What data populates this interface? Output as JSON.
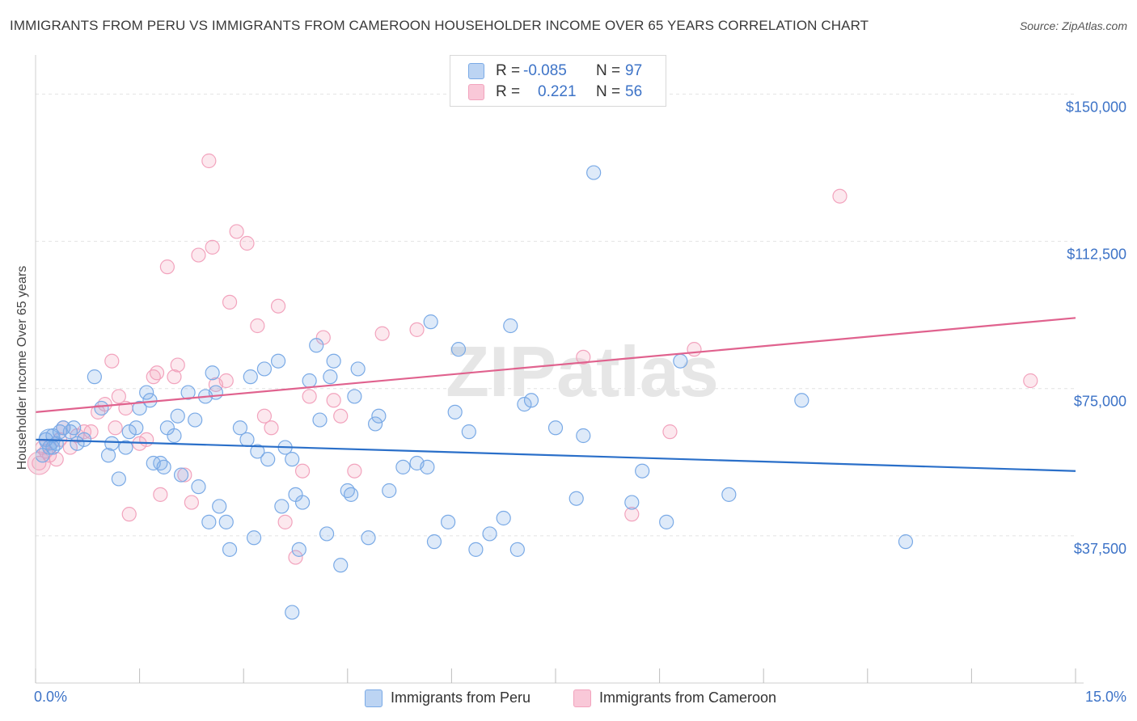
{
  "title": "IMMIGRANTS FROM PERU VS IMMIGRANTS FROM CAMEROON HOUSEHOLDER INCOME OVER 65 YEARS CORRELATION CHART",
  "source": "Source: ZipAtlas.com",
  "watermark": "ZIPatlas",
  "legend": {
    "peru": {
      "r_label": "R =",
      "r_value": "-0.085",
      "n_label": "N =",
      "n_value": "97"
    },
    "cameroon": {
      "r_label": "R =",
      "r_value": "0.221",
      "n_label": "N =",
      "n_value": "56"
    }
  },
  "bottom_legend": {
    "peru": "Immigrants from Peru",
    "cameroon": "Immigrants from Cameroon"
  },
  "colors": {
    "peru": "#7aaae6",
    "peru_line": "#2a6fc9",
    "cameroon": "#f2a3bd",
    "cameroon_line": "#e0628e",
    "axis_text": "#3d73c7"
  },
  "chart_data": {
    "type": "scatter",
    "xlabel": "",
    "ylabel": "Householder Income Over 65 years",
    "xlim": [
      0,
      15
    ],
    "ylim": [
      0,
      157500
    ],
    "x_tick_labels": [
      "0.0%",
      "15.0%"
    ],
    "y_ticks": [
      37500,
      75000,
      112500,
      150000
    ],
    "y_tick_labels": [
      "$37,500",
      "$75,000",
      "$112,500",
      "$150,000"
    ],
    "grid": true,
    "series": [
      {
        "name": "Immigrants from Peru",
        "trend": [
          [
            0.0,
            62000
          ],
          [
            15.0,
            54000
          ]
        ],
        "points": [
          [
            0.1,
            58000
          ],
          [
            0.15,
            62000
          ],
          [
            0.2,
            60000
          ],
          [
            0.25,
            63000
          ],
          [
            0.3,
            61000
          ],
          [
            0.35,
            64000
          ],
          [
            0.4,
            65000
          ],
          [
            0.5,
            64000
          ],
          [
            0.55,
            65000
          ],
          [
            0.6,
            61000
          ],
          [
            0.7,
            62000
          ],
          [
            0.85,
            78000
          ],
          [
            0.95,
            70000
          ],
          [
            1.05,
            58000
          ],
          [
            1.1,
            61000
          ],
          [
            1.2,
            52000
          ],
          [
            1.3,
            60000
          ],
          [
            1.35,
            64000
          ],
          [
            1.45,
            65000
          ],
          [
            1.5,
            70000
          ],
          [
            1.6,
            74000
          ],
          [
            1.65,
            72000
          ],
          [
            1.7,
            56000
          ],
          [
            1.8,
            56000
          ],
          [
            1.85,
            55000
          ],
          [
            1.9,
            65000
          ],
          [
            2.0,
            63000
          ],
          [
            2.05,
            68000
          ],
          [
            2.1,
            53000
          ],
          [
            2.2,
            74000
          ],
          [
            2.3,
            67000
          ],
          [
            2.35,
            50000
          ],
          [
            2.45,
            73000
          ],
          [
            2.5,
            41000
          ],
          [
            2.55,
            79000
          ],
          [
            2.6,
            74000
          ],
          [
            2.65,
            45000
          ],
          [
            2.75,
            41000
          ],
          [
            2.8,
            34000
          ],
          [
            2.95,
            65000
          ],
          [
            3.05,
            62000
          ],
          [
            3.1,
            78000
          ],
          [
            3.15,
            37000
          ],
          [
            3.2,
            59000
          ],
          [
            3.3,
            80000
          ],
          [
            3.35,
            57000
          ],
          [
            3.5,
            82000
          ],
          [
            3.55,
            45000
          ],
          [
            3.6,
            60000
          ],
          [
            3.7,
            57000
          ],
          [
            3.75,
            48000
          ],
          [
            3.8,
            34000
          ],
          [
            3.85,
            46000
          ],
          [
            3.95,
            77000
          ],
          [
            4.05,
            86000
          ],
          [
            4.1,
            67000
          ],
          [
            4.2,
            38000
          ],
          [
            4.25,
            78000
          ],
          [
            4.3,
            82000
          ],
          [
            4.4,
            30000
          ],
          [
            4.5,
            49000
          ],
          [
            4.55,
            48000
          ],
          [
            4.6,
            73000
          ],
          [
            4.65,
            80000
          ],
          [
            4.8,
            37000
          ],
          [
            4.9,
            66000
          ],
          [
            4.95,
            68000
          ],
          [
            5.1,
            49000
          ],
          [
            5.3,
            55000
          ],
          [
            5.5,
            56000
          ],
          [
            5.65,
            55000
          ],
          [
            5.7,
            92000
          ],
          [
            5.75,
            36000
          ],
          [
            5.95,
            41000
          ],
          [
            6.05,
            69000
          ],
          [
            6.1,
            85000
          ],
          [
            6.25,
            64000
          ],
          [
            6.35,
            34000
          ],
          [
            6.55,
            38000
          ],
          [
            6.75,
            42000
          ],
          [
            6.85,
            91000
          ],
          [
            6.95,
            34000
          ],
          [
            7.05,
            71000
          ],
          [
            7.15,
            72000
          ],
          [
            7.5,
            65000
          ],
          [
            7.8,
            47000
          ],
          [
            7.9,
            63000
          ],
          [
            8.05,
            130000
          ],
          [
            8.6,
            46000
          ],
          [
            8.75,
            54000
          ],
          [
            9.1,
            41000
          ],
          [
            9.3,
            82000
          ],
          [
            10.0,
            48000
          ],
          [
            11.05,
            72000
          ],
          [
            12.55,
            36000
          ],
          [
            3.7,
            18000
          ],
          [
            0.25,
            60000
          ]
        ]
      },
      {
        "name": "Immigrants from Cameroon",
        "trend": [
          [
            0.0,
            69000
          ],
          [
            15.0,
            93000
          ]
        ],
        "points": [
          [
            0.05,
            56000
          ],
          [
            0.1,
            60000
          ],
          [
            0.2,
            58000
          ],
          [
            0.3,
            57000
          ],
          [
            0.4,
            65000
          ],
          [
            0.5,
            60000
          ],
          [
            0.6,
            63000
          ],
          [
            0.7,
            64000
          ],
          [
            0.8,
            64000
          ],
          [
            0.9,
            69000
          ],
          [
            1.0,
            71000
          ],
          [
            1.1,
            82000
          ],
          [
            1.15,
            65000
          ],
          [
            1.2,
            73000
          ],
          [
            1.3,
            70000
          ],
          [
            1.35,
            43000
          ],
          [
            1.5,
            61000
          ],
          [
            1.6,
            62000
          ],
          [
            1.7,
            78000
          ],
          [
            1.75,
            79000
          ],
          [
            1.8,
            48000
          ],
          [
            1.9,
            106000
          ],
          [
            2.0,
            78000
          ],
          [
            2.05,
            81000
          ],
          [
            2.15,
            53000
          ],
          [
            2.25,
            46000
          ],
          [
            2.35,
            109000
          ],
          [
            2.5,
            133000
          ],
          [
            2.55,
            111000
          ],
          [
            2.6,
            76000
          ],
          [
            2.75,
            77000
          ],
          [
            2.8,
            97000
          ],
          [
            2.9,
            115000
          ],
          [
            3.05,
            112000
          ],
          [
            3.2,
            91000
          ],
          [
            3.3,
            68000
          ],
          [
            3.4,
            65000
          ],
          [
            3.5,
            96000
          ],
          [
            3.6,
            41000
          ],
          [
            3.75,
            32000
          ],
          [
            3.85,
            54000
          ],
          [
            3.95,
            73000
          ],
          [
            4.15,
            88000
          ],
          [
            4.3,
            72000
          ],
          [
            4.4,
            68000
          ],
          [
            4.6,
            54000
          ],
          [
            5.0,
            89000
          ],
          [
            5.5,
            90000
          ],
          [
            7.9,
            83000
          ],
          [
            8.6,
            43000
          ],
          [
            9.15,
            64000
          ],
          [
            9.5,
            85000
          ],
          [
            11.6,
            124000
          ],
          [
            14.35,
            77000
          ],
          [
            0.15,
            59000
          ],
          [
            0.35,
            62000
          ]
        ]
      }
    ]
  }
}
